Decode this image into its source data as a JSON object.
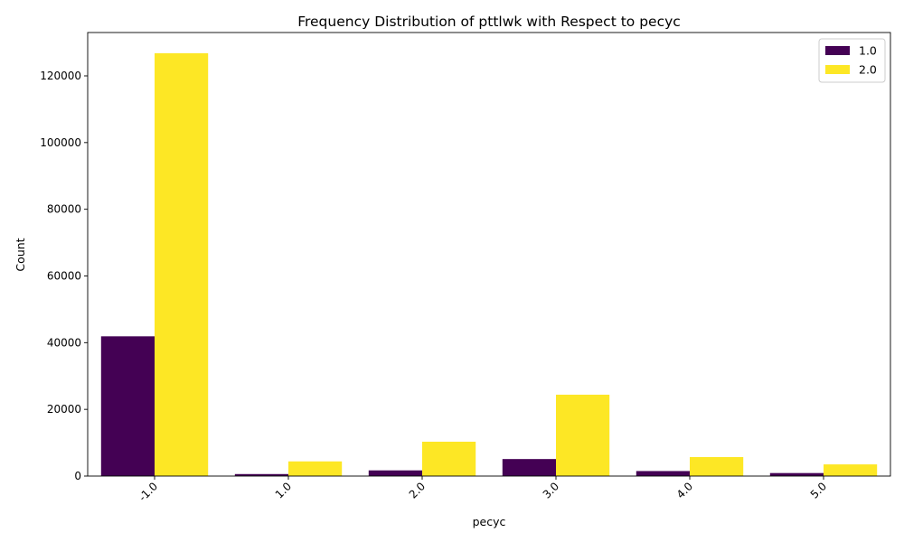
{
  "chart_data": {
    "type": "bar",
    "title": "Frequency Distribution of pttlwk with Respect to pecyc",
    "xlabel": "pecyc",
    "ylabel": "Count",
    "categories": [
      "-1.0",
      "1.0",
      "2.0",
      "3.0",
      "4.0",
      "5.0"
    ],
    "series": [
      {
        "name": "1.0",
        "color": "#440154",
        "values": [
          41900,
          600,
          1700,
          5100,
          1500,
          900
        ]
      },
      {
        "name": "2.0",
        "color": "#fde725",
        "values": [
          126800,
          4400,
          10300,
          24400,
          5700,
          3500
        ]
      }
    ],
    "ylim": [
      0,
      133000
    ],
    "yticks": [
      0,
      20000,
      40000,
      60000,
      80000,
      100000,
      120000
    ],
    "ytick_labels": [
      "0",
      "20000",
      "40000",
      "60000",
      "80000",
      "100000",
      "120000"
    ],
    "grid": false,
    "legend_position": "top-right"
  }
}
